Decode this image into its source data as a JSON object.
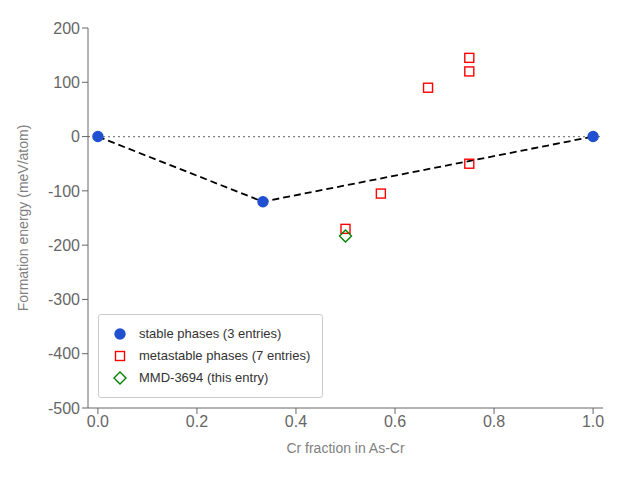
{
  "chart_data": {
    "type": "scatter",
    "xlabel": "Cr fraction in As-Cr",
    "ylabel": "Formation energy (meV/atom)",
    "xlim": [
      -0.02,
      1.02
    ],
    "ylim": [
      -500,
      200
    ],
    "xticks": [
      {
        "value": 0.0,
        "label": "0.0"
      },
      0.2,
      0.4,
      0.6,
      0.8,
      {
        "value": 1.0,
        "label": "1.0"
      }
    ],
    "yticks": [
      -500,
      -400,
      -300,
      -200,
      -100,
      0,
      100,
      200
    ],
    "grid": false,
    "legend": "lower left",
    "hlines": [
      {
        "value": 0,
        "color": "gray",
        "line_style": "dotted"
      }
    ],
    "series": [
      {
        "type": "line",
        "color": "black",
        "line_style": "dashed",
        "x": [
          0.0,
          0.3333,
          1.0
        ],
        "values": [
          0.0,
          -120.0,
          0.0
        ]
      },
      {
        "name": "stable phases (3 entries)",
        "color": "#2050d0",
        "marker": "circle",
        "x": [
          0.0,
          0.3333,
          1.0
        ],
        "values": [
          0.0,
          -120.0,
          0.0
        ]
      },
      {
        "name": "metastable phases (7 entries)",
        "color": "red",
        "marker": "square-open",
        "x": [
          0.5,
          0.5714,
          0.6667,
          0.75,
          0.75,
          0.75
        ],
        "values": [
          -170.0,
          -105.0,
          90.0,
          -50.0,
          120.0,
          145.0
        ]
      },
      {
        "name": "MMD-3694 (this entry)",
        "color": "green",
        "marker": "diamond-open",
        "x": [
          0.5
        ],
        "values": [
          -183.0
        ]
      }
    ]
  }
}
